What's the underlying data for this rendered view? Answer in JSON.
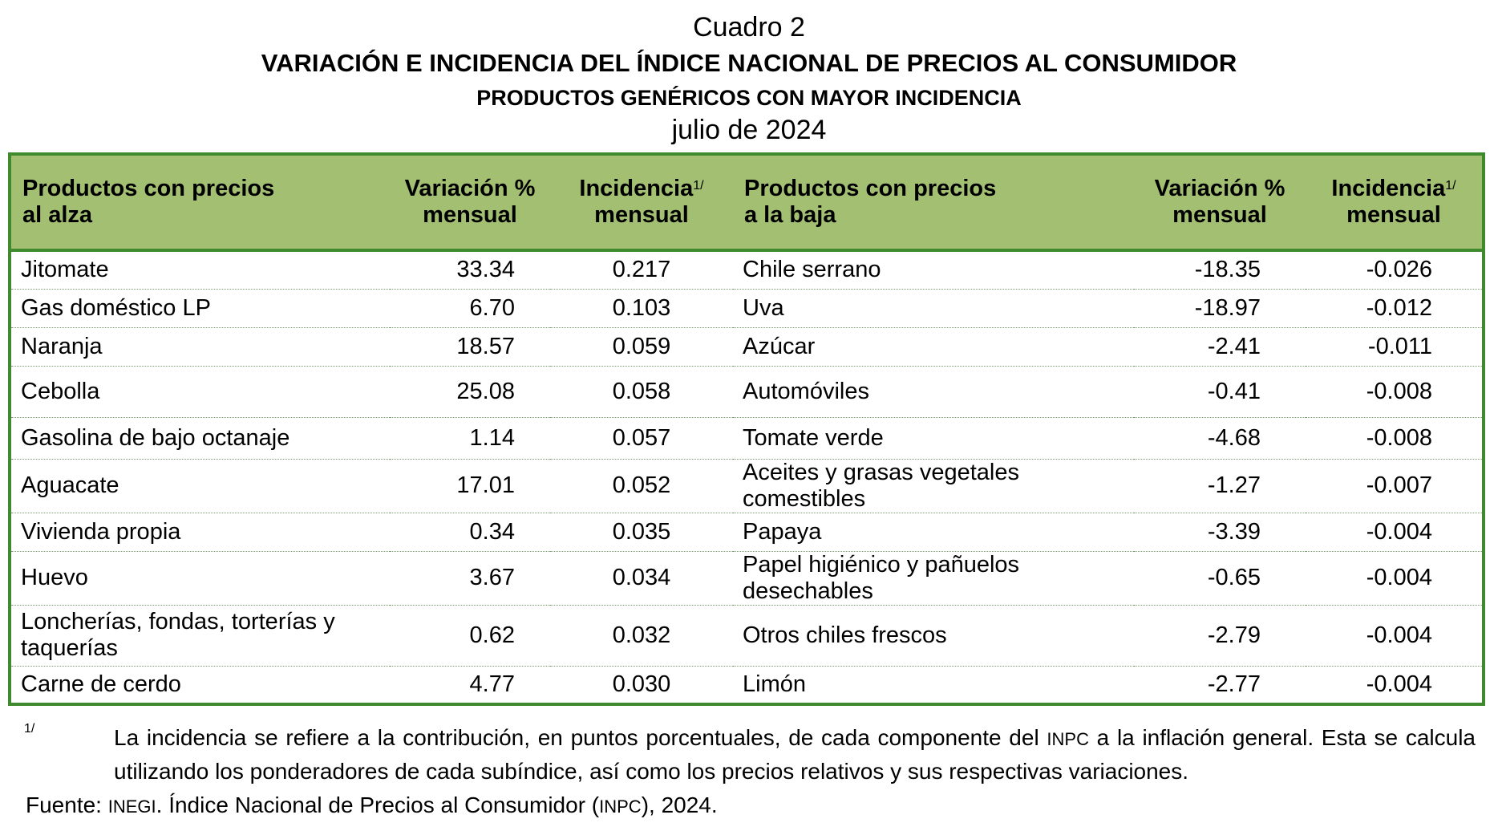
{
  "header": {
    "label": "Cuadro 2",
    "title": "VARIACIÓN E INCIDENCIA DEL ÍNDICE NACIONAL DE PRECIOS AL CONSUMIDOR",
    "subtitle": "PRODUCTOS GENÉRICOS CON MAYOR INCIDENCIA",
    "period": "julio de 2024"
  },
  "table": {
    "columns": {
      "up_name_1": "Productos con precios",
      "up_name_2": "al alza",
      "up_var_1": "Variación %",
      "up_var_2": "mensual",
      "up_inc_1": "Incidencia",
      "up_inc_sup": "1/",
      "up_inc_2": "mensual",
      "down_name_1": "Productos con precios",
      "down_name_2": "a la baja",
      "down_var_1": "Variación %",
      "down_var_2": "mensual",
      "down_inc_1": "Incidencia",
      "down_inc_sup": "1/",
      "down_inc_2": "mensual"
    },
    "rows": [
      {
        "up_name": "Jitomate",
        "up_var": "33.34",
        "up_inc": "0.217",
        "down_name": "Chile serrano",
        "down_var": "-18.35",
        "down_inc": "-0.026"
      },
      {
        "up_name": "Gas doméstico LP",
        "up_var": "6.70",
        "up_inc": "0.103",
        "down_name": "Uva",
        "down_var": "-18.97",
        "down_inc": "-0.012"
      },
      {
        "up_name": "Naranja",
        "up_var": "18.57",
        "up_inc": "0.059",
        "down_name": "Azúcar",
        "down_var": "-2.41",
        "down_inc": "-0.011"
      },
      {
        "up_name": "Cebolla",
        "up_var": "25.08",
        "up_inc": "0.058",
        "down_name": "Automóviles",
        "down_var": "-0.41",
        "down_inc": "-0.008"
      },
      {
        "up_name": "Gasolina de bajo octanaje",
        "up_var": "1.14",
        "up_inc": "0.057",
        "down_name": "Tomate verde",
        "down_var": "-4.68",
        "down_inc": "-0.008"
      },
      {
        "up_name": "Aguacate",
        "up_var": "17.01",
        "up_inc": "0.052",
        "down_name": "Aceites y grasas vegetales comestibles",
        "down_var": "-1.27",
        "down_inc": "-0.007"
      },
      {
        "up_name": "Vivienda propia",
        "up_var": "0.34",
        "up_inc": "0.035",
        "down_name": "Papaya",
        "down_var": "-3.39",
        "down_inc": "-0.004"
      },
      {
        "up_name": "Huevo",
        "up_var": "3.67",
        "up_inc": "0.034",
        "down_name": "Papel higiénico y pañuelos desechables",
        "down_var": "-0.65",
        "down_inc": "-0.004"
      },
      {
        "up_name": "Loncherías, fondas, torterías y taquerías",
        "up_var": "0.62",
        "up_inc": "0.032",
        "down_name": "Otros chiles frescos",
        "down_var": "-2.79",
        "down_inc": "-0.004"
      },
      {
        "up_name": "Carne de cerdo",
        "up_var": "4.77",
        "up_inc": "0.030",
        "down_name": "Limón",
        "down_var": "-2.77",
        "down_inc": "-0.004"
      }
    ]
  },
  "footnote": {
    "mark": "1/",
    "text_before": "La incidencia se refiere a la contribución, en puntos porcentuales, de cada componente del ",
    "text_abbr": "INPC",
    "text_after": " a la inflación general. Esta se calcula utilizando los ponderadores de cada subíndice, así como los precios relativos y sus respectivas variaciones."
  },
  "source": {
    "label": "Fuente: ",
    "org": "INEGI",
    "text_mid": ". Índice Nacional de Precios al Consumidor (",
    "abbr": "INPC",
    "text_end": "), 2024."
  },
  "colors": {
    "header_bg": "#a2bf72",
    "border": "#3f8a2e"
  }
}
